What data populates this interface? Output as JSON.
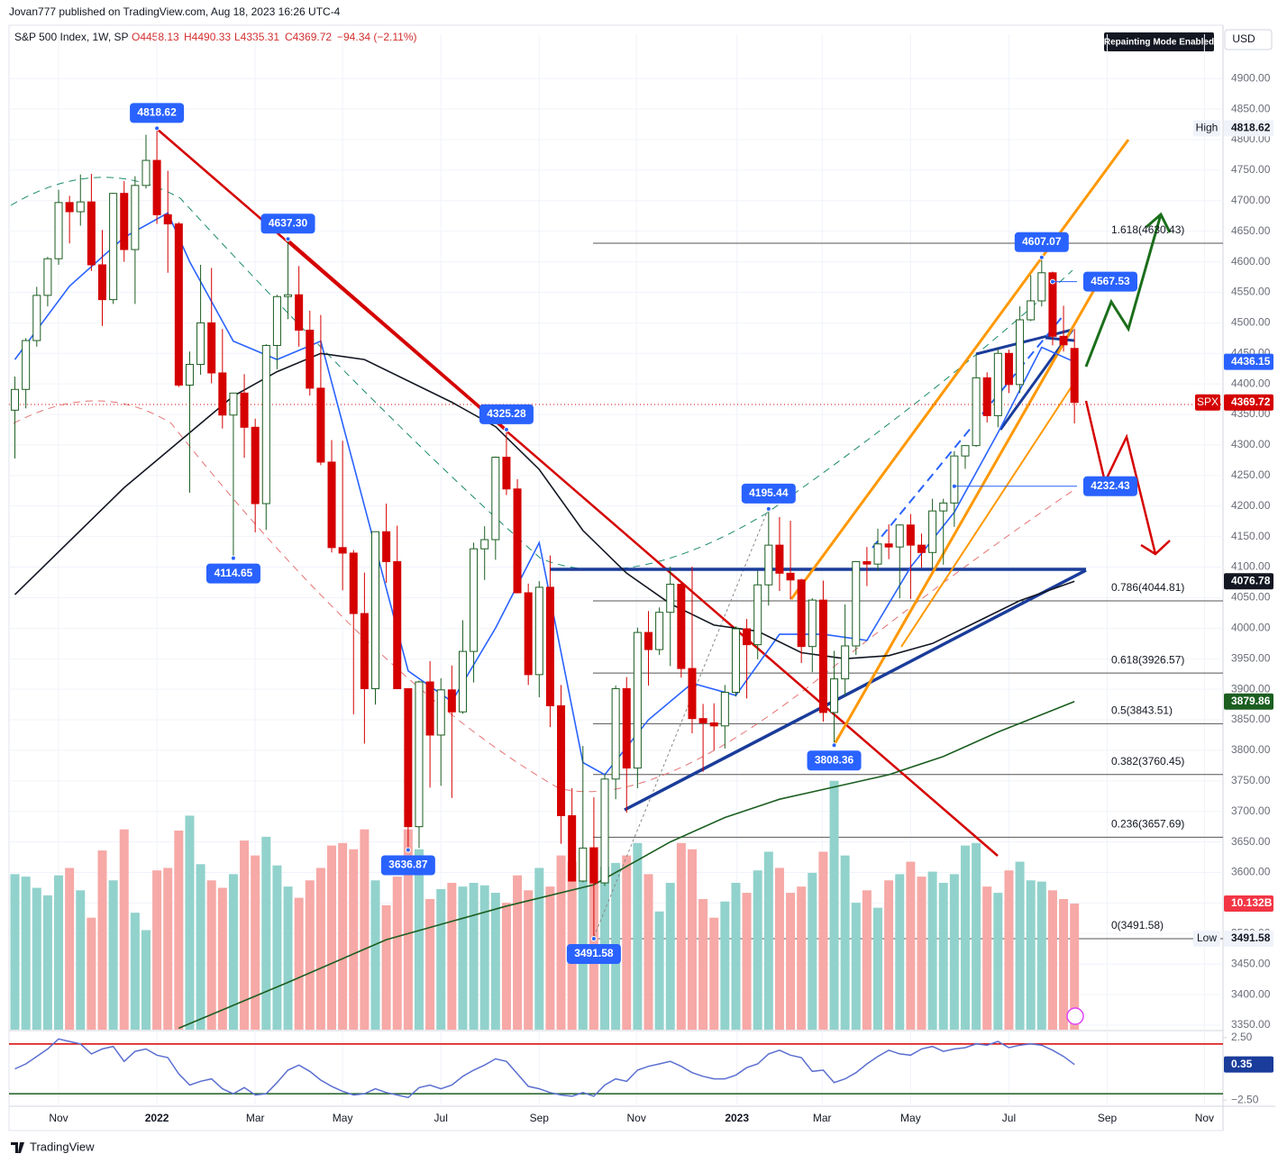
{
  "page": {
    "author_line": "Jovan777 published on TradingView.com, Aug 18, 2023 16:26 UTC-4",
    "symbol": "S&P 500 Index, 1W, SP",
    "open_text": "O4458.13",
    "high_text": "H4490.33",
    "low_text": "L4335.31",
    "close_text": "C4369.72",
    "change_text": "−94.34 (−2.11%)",
    "repaint_badge": "Repainting Mode Enabled",
    "currency": "USD",
    "brand": "TradingView"
  },
  "chart_data": {
    "type": "candlestick",
    "up_color": "#1b5e20",
    "down_color": "#d50000",
    "xlim": [
      -0.54,
      110.6
    ],
    "xticks": [
      {
        "value": 4.0,
        "label": "Nov"
      },
      {
        "value": 13.0,
        "label": "2022"
      },
      {
        "value": 22.0,
        "label": "Mar"
      },
      {
        "value": 30.0,
        "label": "May"
      },
      {
        "value": 39.0,
        "label": "Jul"
      },
      {
        "value": 48.0,
        "label": "Sep"
      },
      {
        "value": 56.9,
        "label": "Nov"
      },
      {
        "value": 66.1,
        "label": "2023"
      },
      {
        "value": 73.9,
        "label": "Mar"
      },
      {
        "value": 82.0,
        "label": "May"
      },
      {
        "value": 91.0,
        "label": "Jul"
      },
      {
        "value": 100.0,
        "label": "Sep"
      },
      {
        "value": 108.9,
        "label": "Nov"
      }
    ],
    "ylim": [
      3342.6,
      4972.6
    ],
    "yticks": [
      {
        "value": 3350,
        "label": "3350.00"
      },
      {
        "value": 3400,
        "label": "3400.00"
      },
      {
        "value": 3450,
        "label": "3450.00"
      },
      {
        "value": 3500,
        "label": "3500.00"
      },
      {
        "value": 3550,
        "label": "3550.00"
      },
      {
        "value": 3600,
        "label": "3600.00"
      },
      {
        "value": 3650,
        "label": "3650.00"
      },
      {
        "value": 3700,
        "label": "3700.00"
      },
      {
        "value": 3750,
        "label": "3750.00"
      },
      {
        "value": 3800,
        "label": "3800.00"
      },
      {
        "value": 3850,
        "label": "3850.00"
      },
      {
        "value": 3900,
        "label": "3900.00"
      },
      {
        "value": 3950,
        "label": "3950.00"
      },
      {
        "value": 4000,
        "label": "4000.00"
      },
      {
        "value": 4050,
        "label": "4050.00"
      },
      {
        "value": 4100,
        "label": "4100.00"
      },
      {
        "value": 4150,
        "label": "4150.00"
      },
      {
        "value": 4200,
        "label": "4200.00"
      },
      {
        "value": 4250,
        "label": "4250.00"
      },
      {
        "value": 4300,
        "label": "4300.00"
      },
      {
        "value": 4350,
        "label": "4350.00"
      },
      {
        "value": 4400,
        "label": "4400.00"
      },
      {
        "value": 4450,
        "label": "4450.00"
      },
      {
        "value": 4500,
        "label": "4500.00"
      },
      {
        "value": 4550,
        "label": "4550.00"
      },
      {
        "value": 4600,
        "label": "4600.00"
      },
      {
        "value": 4650,
        "label": "4650.00"
      },
      {
        "value": 4700,
        "label": "4700.00"
      },
      {
        "value": 4750,
        "label": "4750.00"
      },
      {
        "value": 4800,
        "label": "4800.00"
      },
      {
        "value": 4850,
        "label": "4850.00"
      },
      {
        "value": 4900,
        "label": "4900.00"
      }
    ],
    "grid": true,
    "candles": [
      [
        4357,
        4412,
        4278,
        4391
      ],
      [
        4391,
        4475,
        4360,
        4471
      ],
      [
        4471,
        4559,
        4461,
        4545
      ],
      [
        4545,
        4608,
        4527,
        4605
      ],
      [
        4605,
        4718,
        4595,
        4697
      ],
      [
        4697,
        4708,
        4630,
        4682
      ],
      [
        4682,
        4743,
        4659,
        4698
      ],
      [
        4698,
        4744,
        4585,
        4595
      ],
      [
        4595,
        4652,
        4495,
        4538
      ],
      [
        4538,
        4713,
        4531,
        4712
      ],
      [
        4712,
        4732,
        4600,
        4620
      ],
      [
        4620,
        4740,
        4531,
        4725
      ],
      [
        4725,
        4808,
        4720,
        4766
      ],
      [
        4766,
        4819,
        4662,
        4677
      ],
      [
        4677,
        4749,
        4582,
        4662
      ],
      [
        4662,
        4665,
        4395,
        4398
      ],
      [
        4398,
        4453,
        4222,
        4432
      ],
      [
        4432,
        4595,
        4415,
        4500
      ],
      [
        4500,
        4590,
        4401,
        4418
      ],
      [
        4418,
        4490,
        4327,
        4349
      ],
      [
        4349,
        4385,
        4115,
        4385
      ],
      [
        4385,
        4416,
        4279,
        4329
      ],
      [
        4329,
        4343,
        4157,
        4204
      ],
      [
        4204,
        4465,
        4161,
        4463
      ],
      [
        4463,
        4546,
        4424,
        4543
      ],
      [
        4543,
        4637,
        4506,
        4546
      ],
      [
        4546,
        4593,
        4461,
        4488
      ],
      [
        4488,
        4520,
        4381,
        4393
      ],
      [
        4393,
        4513,
        4267,
        4272
      ],
      [
        4272,
        4308,
        4124,
        4132
      ],
      [
        4132,
        4307,
        4062,
        4123
      ],
      [
        4123,
        4128,
        3859,
        4024
      ],
      [
        4024,
        4091,
        3811,
        3901
      ],
      [
        3901,
        4158,
        3875,
        4158
      ],
      [
        4158,
        4204,
        4074,
        4109
      ],
      [
        4109,
        4168,
        3901,
        3901
      ],
      [
        3901,
        3901,
        3637,
        3675
      ],
      [
        3675,
        3914,
        3640,
        3912
      ],
      [
        3912,
        3946,
        3739,
        3825
      ],
      [
        3825,
        3918,
        3742,
        3899
      ],
      [
        3899,
        3939,
        3722,
        3863
      ],
      [
        3863,
        4013,
        3860,
        3962
      ],
      [
        3962,
        4140,
        3911,
        4130
      ],
      [
        4130,
        4167,
        4079,
        4145
      ],
      [
        4145,
        4281,
        4112,
        4280
      ],
      [
        4280,
        4325,
        4218,
        4228
      ],
      [
        4228,
        4244,
        4057,
        4058
      ],
      [
        4058,
        4073,
        3907,
        3924
      ],
      [
        3924,
        4077,
        3887,
        4067
      ],
      [
        4067,
        4119,
        3838,
        3873
      ],
      [
        3873,
        3907,
        3647,
        3693
      ],
      [
        3693,
        3738,
        3585,
        3586
      ],
      [
        3586,
        3807,
        3584,
        3640
      ],
      [
        3640,
        3723,
        3492,
        3583
      ],
      [
        3583,
        3762,
        3578,
        3753
      ],
      [
        3753,
        3906,
        3720,
        3901
      ],
      [
        3901,
        3920,
        3698,
        3771
      ],
      [
        3771,
        4001,
        3738,
        3993
      ],
      [
        3993,
        4028,
        3906,
        3965
      ],
      [
        3965,
        4034,
        3956,
        4026
      ],
      [
        4026,
        4101,
        3938,
        4072
      ],
      [
        4072,
        4076,
        3919,
        3934
      ],
      [
        3934,
        4101,
        3828,
        3852
      ],
      [
        3852,
        3876,
        3765,
        3845
      ],
      [
        3845,
        3877,
        3800,
        3840
      ],
      [
        3840,
        3907,
        3803,
        3895
      ],
      [
        3895,
        4003,
        3888,
        3999
      ],
      [
        3999,
        4015,
        3885,
        3973
      ],
      [
        3973,
        4094,
        3949,
        4071
      ],
      [
        4071,
        4195,
        4037,
        4136
      ],
      [
        4136,
        4182,
        4061,
        4090
      ],
      [
        4090,
        4176,
        4047,
        4079
      ],
      [
        4079,
        4081,
        3943,
        3970
      ],
      [
        3970,
        4049,
        3928,
        4046
      ],
      [
        4046,
        4078,
        3847,
        3862
      ],
      [
        3862,
        3963,
        3808,
        3917
      ],
      [
        3917,
        4039,
        3889,
        3971
      ],
      [
        3971,
        4110,
        3956,
        4109
      ],
      [
        4109,
        4133,
        4069,
        4105
      ],
      [
        4105,
        4163,
        4094,
        4138
      ],
      [
        4138,
        4170,
        4113,
        4133
      ],
      [
        4133,
        4170,
        4049,
        4169
      ],
      [
        4169,
        4187,
        4048,
        4136
      ],
      [
        4136,
        4155,
        4099,
        4124
      ],
      [
        4124,
        4212,
        4099,
        4192
      ],
      [
        4192,
        4212,
        4104,
        4205
      ],
      [
        4205,
        4290,
        4166,
        4282
      ],
      [
        4282,
        4300,
        4261,
        4299
      ],
      [
        4299,
        4448,
        4297,
        4410
      ],
      [
        4410,
        4419,
        4337,
        4348
      ],
      [
        4348,
        4458,
        4329,
        4450
      ],
      [
        4450,
        4456,
        4385,
        4399
      ],
      [
        4399,
        4527,
        4385,
        4505
      ],
      [
        4505,
        4578,
        4503,
        4536
      ],
      [
        4536,
        4607,
        4527,
        4582
      ],
      [
        4582,
        4584,
        4463,
        4478
      ],
      [
        4478,
        4528,
        4453,
        4464
      ],
      [
        4458.13,
        4490.33,
        4335.31,
        4369.72
      ]
    ],
    "last_price_tag": "SPX",
    "volume": {
      "lim": [
        0,
        80
      ],
      "up_color": "#92d2cc",
      "down_color": "#f6a9a6",
      "last_label": "10.132B",
      "values": [
        12.5,
        12.3,
        11.4,
        10.8,
        12.4,
        13.0,
        11.2,
        9.0,
        14.4,
        12.0,
        16.1,
        9.4,
        8.0,
        12.8,
        13.0,
        16.0,
        17.2,
        13.3,
        12.0,
        11.4,
        12.5,
        15.2,
        14.0,
        15.5,
        13.2,
        11.5,
        10.6,
        12.0,
        13.0,
        14.8,
        15.0,
        14.5,
        16.1,
        12.0,
        10.0,
        12.3,
        16.1,
        14.5,
        10.5,
        11.3,
        11.8,
        11.5,
        11.8,
        11.6,
        11.0,
        10.2,
        12.4,
        11.2,
        13.0,
        11.5,
        14.0,
        13.5,
        12.0,
        14.7,
        13.1,
        13.4,
        14.0,
        15.0,
        12.5,
        9.5,
        11.8,
        15.0,
        14.5,
        10.5,
        9.0,
        10.3,
        11.8,
        11.0,
        12.8,
        14.3,
        13.0,
        11.0,
        11.5,
        12.6,
        14.3,
        20.0,
        14.0,
        10.2,
        11.2,
        9.8,
        12.0,
        12.5,
        13.5,
        12.3,
        12.7,
        11.8,
        12.5,
        14.8,
        15.0,
        11.5,
        11.0,
        12.8,
        13.5,
        12.0,
        11.9,
        11.2,
        10.5,
        10.132
      ]
    },
    "lines": [
      {
        "color": "#2962ff",
        "x": [
          0,
          5,
          10,
          14,
          16,
          20,
          24,
          28,
          32,
          36,
          40,
          44,
          48,
          52,
          54,
          58,
          62,
          66,
          70,
          74,
          78,
          82,
          86,
          90,
          94,
          97
        ],
        "values": [
          4440,
          4560,
          4640,
          4680,
          4600,
          4470,
          4440,
          4470,
          4200,
          3930,
          3880,
          4000,
          4140,
          3780,
          3760,
          3850,
          3910,
          3890,
          3990,
          3990,
          3980,
          4100,
          4190,
          4320,
          4460,
          4436.15
        ]
      },
      {
        "color": "#131722",
        "x": [
          0,
          10,
          20,
          24,
          28,
          32,
          40,
          44,
          48,
          52,
          56,
          60,
          64,
          68,
          72,
          76,
          80,
          84,
          88,
          92,
          97
        ],
        "values": [
          4055,
          4230,
          4380,
          4420,
          4450,
          4440,
          4370,
          4330,
          4260,
          4160,
          4090,
          4040,
          4005,
          3995,
          3960,
          3950,
          3955,
          3975,
          4010,
          4045,
          4076.78
        ]
      },
      {
        "color": "#1b5e20",
        "x": [
          15,
          25,
          34,
          45,
          53,
          60,
          65,
          70,
          75,
          80,
          85,
          90,
          97
        ],
        "values": [
          3345,
          3420,
          3490,
          3545,
          3580,
          3650,
          3690,
          3720,
          3740,
          3760,
          3790,
          3830,
          3879.86
        ]
      }
    ],
    "annotations": [
      {
        "x": 13,
        "value": 4818.62
      },
      {
        "x": 25,
        "value": 4637.3,
        "label": "4637.30"
      },
      {
        "x": 20,
        "value": 4114.65
      },
      {
        "x": 45,
        "value": 4325.28
      },
      {
        "x": 36,
        "value": 3636.87
      },
      {
        "x": 53,
        "value": 3491.58
      },
      {
        "x": 69,
        "value": 4195.44
      },
      {
        "x": 75,
        "value": 3808.36
      },
      {
        "x": 94,
        "value": 4607.07
      },
      {
        "x": 95,
        "value": 4567.53
      },
      {
        "x": 86,
        "value": 4232.43
      }
    ],
    "high_tag": "High",
    "low_tag": "Low",
    "fib_levels": [
      {
        "value": 4630.43,
        "label": "1.618(4630.43)"
      },
      {
        "value": 4044.81,
        "label": "0.786(4044.81)"
      },
      {
        "value": 3926.57,
        "label": "0.618(3926.57)"
      },
      {
        "value": 3843.51,
        "label": "0.5(3843.51)"
      },
      {
        "value": 3760.45,
        "label": "0.382(3760.45)"
      },
      {
        "value": 3657.69,
        "label": "0.236(3657.69)"
      },
      {
        "value": 3491.58,
        "label": "0(3491.58)"
      }
    ],
    "osc": {
      "ylim": [
        -3,
        3
      ],
      "yticks": [
        {
          "value": 2.5,
          "label": "2.50"
        },
        {
          "value": -2.5,
          "label": "−2.50"
        }
      ],
      "upper": 2,
      "lower": -2,
      "color": "#5b6fd0",
      "values": [
        0.0,
        0.4,
        1.0,
        1.6,
        2.4,
        2.2,
        2.0,
        1.2,
        1.6,
        1.8,
        0.6,
        1.4,
        1.6,
        1.1,
        0.9,
        -0.4,
        -1.3,
        -1.0,
        -0.8,
        -1.6,
        -2.0,
        -1.5,
        -2.1,
        -2.0,
        -1.1,
        -0.1,
        0.3,
        -0.2,
        -0.9,
        -1.4,
        -1.8,
        -2.1,
        -2.0,
        -1.6,
        -1.9,
        -2.1,
        -2.3,
        -1.5,
        -1.3,
        -1.6,
        -1.3,
        -0.6,
        -0.1,
        0.3,
        0.8,
        0.6,
        -0.4,
        -1.4,
        -1.6,
        -1.9,
        -2.1,
        -2.2,
        -1.9,
        -2.2,
        -1.3,
        -0.8,
        -1.0,
        -0.1,
        0.2,
        0.4,
        0.6,
        0.2,
        -0.3,
        -0.6,
        -0.8,
        -0.8,
        -0.5,
        0.1,
        0.4,
        1.2,
        1.5,
        1.1,
        0.9,
        -0.2,
        -0.1,
        -1.1,
        -0.8,
        -0.3,
        0.4,
        1.0,
        1.5,
        1.2,
        1.1,
        1.6,
        1.8,
        1.4,
        1.6,
        1.7,
        2.0,
        1.9,
        2.2,
        1.7,
        1.9,
        2.0,
        1.9,
        1.5,
        1.0,
        0.35
      ]
    }
  }
}
